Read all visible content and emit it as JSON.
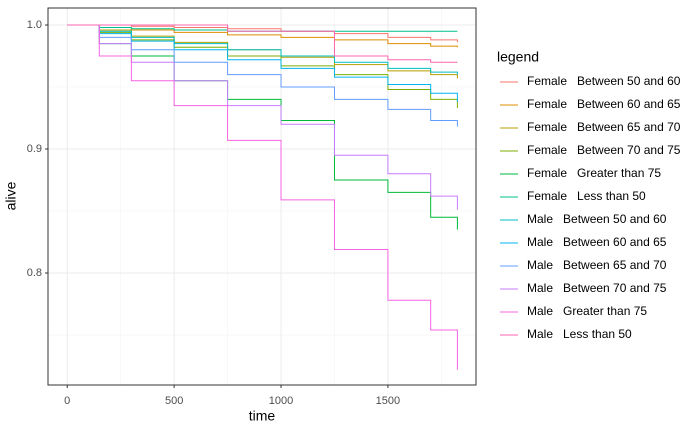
{
  "chart_data": {
    "type": "line",
    "step": true,
    "x_label": "time",
    "y_label": "alive",
    "legend_title": "legend",
    "x": [
      0,
      150,
      300,
      500,
      750,
      1000,
      1250,
      1500,
      1700,
      1825
    ],
    "xlim": [
      -90,
      1912
    ],
    "xticks": [
      0,
      500,
      1000,
      1500
    ],
    "x_minor_ticks": [
      250,
      750,
      1250,
      1750
    ],
    "ylim": [
      0.7097,
      1.0137
    ],
    "yticks": [
      {
        "value": 0.8,
        "label": "0.8"
      },
      {
        "value": 0.9,
        "label": "0.9"
      },
      {
        "value": 1,
        "label": "1.0"
      }
    ],
    "y_minor_ticks": [
      0.75,
      0.85,
      0.95
    ],
    "grid": true,
    "legend_position": "right",
    "series": [
      {
        "name": "Female   Between 50 and 60",
        "color": "#F8766D",
        "values": [
          1,
          1,
          0.999,
          0.998,
          0.997,
          0.995,
          0.993,
          0.99,
          0.988,
          0.986
        ]
      },
      {
        "name": "Female   Between 60 and 65",
        "color": "#DE8C00",
        "values": [
          1,
          0.998,
          0.996,
          0.994,
          0.992,
          0.99,
          0.988,
          0.985,
          0.983,
          0.982
        ]
      },
      {
        "name": "Female   Between 65 and 70",
        "color": "#B79F00",
        "values": [
          1,
          0.996,
          0.991,
          0.986,
          0.98,
          0.974,
          0.968,
          0.963,
          0.96,
          0.957
        ]
      },
      {
        "name": "Female   Between 70 and 75",
        "color": "#7CAE00",
        "values": [
          1,
          0.994,
          0.988,
          0.982,
          0.975,
          0.967,
          0.96,
          0.948,
          0.94,
          0.933
        ]
      },
      {
        "name": "Female   Greater than 75",
        "color": "#00BA38",
        "values": [
          1,
          0.985,
          0.975,
          0.955,
          0.94,
          0.923,
          0.875,
          0.865,
          0.845,
          0.835
        ]
      },
      {
        "name": "Female   Less than 50",
        "color": "#00C08B",
        "values": [
          1,
          0.998,
          0.997,
          0.996,
          0.995,
          0.995,
          0.995,
          0.995,
          0.995,
          0.995
        ]
      },
      {
        "name": "Male   Between 50 and 60",
        "color": "#00BFC4",
        "values": [
          1,
          0.995,
          0.99,
          0.985,
          0.98,
          0.975,
          0.97,
          0.965,
          0.962,
          0.96
        ]
      },
      {
        "name": "Male   Between 60 and 65",
        "color": "#00B4F0",
        "values": [
          1,
          0.993,
          0.987,
          0.98,
          0.972,
          0.965,
          0.958,
          0.952,
          0.945,
          0.938
        ]
      },
      {
        "name": "Male   Between 65 and 70",
        "color": "#619CFF",
        "values": [
          1,
          0.99,
          0.98,
          0.97,
          0.96,
          0.95,
          0.94,
          0.932,
          0.923,
          0.918
        ]
      },
      {
        "name": "Male   Between 70 and 75",
        "color": "#C77CFF",
        "values": [
          1,
          0.985,
          0.97,
          0.955,
          0.935,
          0.92,
          0.895,
          0.88,
          0.862,
          0.851
        ]
      },
      {
        "name": "Male   Greater than 75",
        "color": "#F564E3",
        "values": [
          1,
          0.975,
          0.955,
          0.935,
          0.907,
          0.859,
          0.819,
          0.778,
          0.754,
          0.722
        ]
      },
      {
        "name": "Male   Less than 50",
        "color": "#FF64B0",
        "values": [
          1,
          1,
          1,
          1,
          0.995,
          0.995,
          0.975,
          0.972,
          0.97,
          0.97
        ]
      }
    ]
  }
}
